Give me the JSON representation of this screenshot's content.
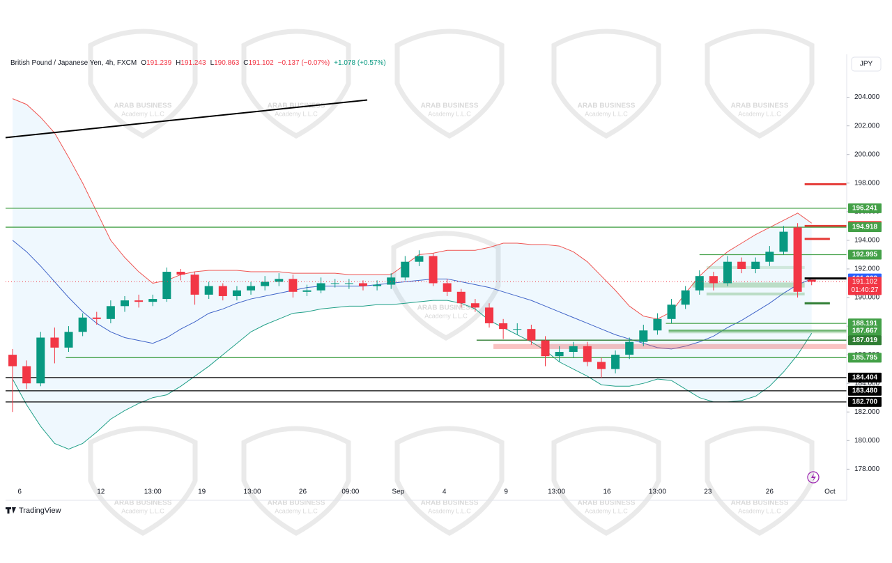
{
  "chart_data": {
    "type": "candlestick",
    "header": {
      "symbol": "British Pound / Japanese Yen, 4h, FXCM",
      "ohlc": [
        {
          "key": "O",
          "text": "191.239"
        },
        {
          "key": "H",
          "text": "191.243"
        },
        {
          "key": "L",
          "text": "190.863"
        },
        {
          "key": "C",
          "text": "191.102"
        }
      ],
      "change": "−0.137 (−0.07%)",
      "change2": "+1.078 (+0.57%)"
    },
    "currency": "JPY",
    "brand": "TradingView",
    "watermark": {
      "title": "ARAB BUSINESS",
      "subtitle": "Academy L.L.C"
    },
    "xlim": [
      -0.5,
      59.5
    ],
    "ylim": [
      176.8,
      207.0
    ],
    "xticks": [
      {
        "value": 0.5,
        "label": "6"
      },
      {
        "value": 6.3,
        "label": "12"
      },
      {
        "value": 10.0,
        "label": "13:00"
      },
      {
        "value": 13.5,
        "label": "19"
      },
      {
        "value": 17.1,
        "label": "13:00"
      },
      {
        "value": 20.7,
        "label": "26"
      },
      {
        "value": 24.1,
        "label": "09:00"
      },
      {
        "value": 27.5,
        "label": "Sep"
      },
      {
        "value": 30.8,
        "label": "4"
      },
      {
        "value": 35.2,
        "label": "9"
      },
      {
        "value": 38.8,
        "label": "13:00"
      },
      {
        "value": 42.4,
        "label": "16"
      },
      {
        "value": 46.0,
        "label": "13:00"
      },
      {
        "value": 49.6,
        "label": "23"
      },
      {
        "value": 54.0,
        "label": "26"
      },
      {
        "value": 58.3,
        "label": "Oct"
      }
    ],
    "yticks": [
      {
        "value": 178,
        "label": "178.000"
      },
      {
        "value": 180,
        "label": "180.000"
      },
      {
        "value": 182,
        "label": "182.000"
      },
      {
        "value": 184,
        "label": "184.000"
      },
      {
        "value": 186,
        "label": "186.000"
      },
      {
        "value": 188,
        "label": "188.000"
      },
      {
        "value": 190,
        "label": "190.000"
      },
      {
        "value": 192,
        "label": "192.000"
      },
      {
        "value": 194,
        "label": "194.000"
      },
      {
        "value": 196,
        "label": "196.000"
      },
      {
        "value": 198,
        "label": "198.000"
      },
      {
        "value": 200,
        "label": "200.000"
      },
      {
        "value": 202,
        "label": "202.000"
      },
      {
        "value": 204,
        "label": "204.000"
      }
    ],
    "up_color": "#089981",
    "down_color": "#f23645",
    "open": [
      186.0,
      185.2,
      184.0,
      187.2,
      186.5,
      187.6,
      188.6,
      188.5,
      189.4,
      189.8,
      189.7,
      189.9,
      191.8,
      191.6,
      190.2,
      190.8,
      190.1,
      190.5,
      190.8,
      191.1,
      191.3,
      190.4,
      190.5,
      191.0,
      191.0,
      191.0,
      190.8,
      190.9,
      191.4,
      192.5,
      192.9,
      191.0,
      190.4,
      189.6,
      189.3,
      188.2,
      187.8,
      187.8,
      187.0,
      185.9,
      186.2,
      186.6,
      185.5,
      185.0,
      186.0,
      186.9,
      187.7,
      188.5,
      189.5,
      190.5,
      191.5,
      191.0,
      192.5,
      192.0,
      192.5,
      193.2,
      194.9,
      191.239
    ],
    "high": [
      186.4,
      185.6,
      187.6,
      187.9,
      188.0,
      188.9,
      189.0,
      189.8,
      190.1,
      190.2,
      190.2,
      192.1,
      192.0,
      191.8,
      191.1,
      191.0,
      190.8,
      191.1,
      191.5,
      191.7,
      191.6,
      190.9,
      191.4,
      191.3,
      191.3,
      191.2,
      191.2,
      191.7,
      192.9,
      193.3,
      193.1,
      191.3,
      190.6,
      189.9,
      189.6,
      188.5,
      188.2,
      188.1,
      187.3,
      186.6,
      186.9,
      186.9,
      185.8,
      186.3,
      187.2,
      188.1,
      188.9,
      189.9,
      190.8,
      191.9,
      191.8,
      192.9,
      192.8,
      192.8,
      193.6,
      195.0,
      195.2,
      191.243
    ],
    "low": [
      182.0,
      183.6,
      183.8,
      185.4,
      186.2,
      187.3,
      188.1,
      188.2,
      189.0,
      189.3,
      189.4,
      189.7,
      191.2,
      189.5,
      189.9,
      189.8,
      189.8,
      190.2,
      190.5,
      190.8,
      190.0,
      190.1,
      190.3,
      190.7,
      190.6,
      190.5,
      190.5,
      190.6,
      191.2,
      192.2,
      190.8,
      190.1,
      189.3,
      189.0,
      187.9,
      187.1,
      187.4,
      186.7,
      185.2,
      185.5,
      185.8,
      185.2,
      184.4,
      184.7,
      185.7,
      186.6,
      187.4,
      188.2,
      189.2,
      190.2,
      190.5,
      190.8,
      191.7,
      191.7,
      192.2,
      193.0,
      190.0,
      190.863
    ],
    "close": [
      185.2,
      184.0,
      187.2,
      186.5,
      187.6,
      188.6,
      188.5,
      189.4,
      189.8,
      189.7,
      189.9,
      191.8,
      191.6,
      190.2,
      190.8,
      190.1,
      190.5,
      190.8,
      191.1,
      191.3,
      190.4,
      190.5,
      191.0,
      191.0,
      191.0,
      190.8,
      190.9,
      191.4,
      192.5,
      192.9,
      191.0,
      190.4,
      189.6,
      189.3,
      188.2,
      187.8,
      187.8,
      187.0,
      185.9,
      186.2,
      186.6,
      185.5,
      185.0,
      186.0,
      186.9,
      187.7,
      188.5,
      189.5,
      190.5,
      191.5,
      191.0,
      192.5,
      192.0,
      192.5,
      193.2,
      194.6,
      190.4,
      191.102
    ],
    "bands": {
      "fill": "rgba(33,150,243,0.07)",
      "upper": {
        "color": "#ef5350",
        "values": [
          203.9,
          203.5,
          202.6,
          201.5,
          199.8,
          198.0,
          196.0,
          194.0,
          192.8,
          191.8,
          191.0,
          191.2,
          191.6,
          191.8,
          191.9,
          191.9,
          191.9,
          191.8,
          191.8,
          191.8,
          191.7,
          191.7,
          191.7,
          191.7,
          191.6,
          191.6,
          191.6,
          191.6,
          192.3,
          193.0,
          193.1,
          193.3,
          193.3,
          193.3,
          193.5,
          193.8,
          193.8,
          193.7,
          193.7,
          193.6,
          193.2,
          192.5,
          191.5,
          190.5,
          189.4,
          188.7,
          188.5,
          189.0,
          190.3,
          191.5,
          192.4,
          193.2,
          193.8,
          194.4,
          194.9,
          195.4,
          195.9,
          195.2
        ]
      },
      "middle": {
        "color": "#3f63c8",
        "values": [
          194.0,
          193.2,
          192.2,
          191.1,
          190.0,
          189.0,
          188.2,
          187.6,
          187.2,
          187.0,
          186.8,
          187.2,
          187.8,
          188.3,
          188.9,
          189.2,
          189.6,
          189.9,
          190.1,
          190.3,
          190.5,
          190.7,
          190.8,
          190.8,
          190.8,
          190.8,
          190.9,
          191.0,
          191.1,
          191.2,
          191.3,
          191.3,
          191.1,
          190.9,
          190.7,
          190.4,
          190.1,
          189.8,
          189.4,
          189.0,
          188.6,
          188.2,
          187.8,
          187.4,
          187.1,
          186.8,
          186.5,
          186.4,
          186.6,
          186.9,
          187.3,
          187.9,
          188.4,
          189.0,
          189.6,
          190.3,
          190.9,
          191.3
        ]
      },
      "lower": {
        "color": "#1f9f87",
        "values": [
          184.3,
          182.5,
          181.0,
          179.8,
          179.4,
          179.8,
          180.6,
          181.5,
          182.1,
          182.6,
          183.0,
          183.2,
          183.8,
          184.5,
          185.2,
          186.0,
          186.8,
          187.6,
          188.1,
          188.5,
          188.9,
          189.0,
          189.2,
          189.3,
          189.4,
          189.4,
          189.5,
          189.5,
          189.6,
          189.7,
          189.8,
          189.8,
          189.6,
          189.2,
          188.4,
          187.9,
          187.4,
          186.9,
          186.3,
          185.5,
          185.0,
          184.5,
          183.9,
          183.8,
          183.8,
          184.0,
          184.3,
          184.2,
          183.6,
          183.0,
          182.7,
          182.7,
          182.8,
          183.1,
          183.8,
          184.8,
          186.0,
          187.5
        ]
      }
    },
    "trendline": {
      "x": [
        -0.5,
        25.3
      ],
      "values": [
        201.18,
        203.81
      ],
      "color": "#000000"
    },
    "zones": [
      {
        "x": [
          49.5,
          56.5
        ],
        "values": [
          192.2,
          192.0
        ],
        "color": "rgba(67,160,71,0.18)"
      },
      {
        "x": [
          48.5,
          56.5
        ],
        "values": [
          191.05,
          190.7
        ],
        "color": "rgba(67,160,71,0.3)"
      },
      {
        "x": [
          49.5,
          56.5
        ],
        "values": [
          190.35,
          190.15
        ],
        "color": "rgba(67,160,71,0.3)"
      },
      {
        "x": [
          46.8,
          59.5
        ],
        "values": [
          187.8,
          187.5
        ],
        "color": "rgba(67,160,71,0.3)"
      },
      {
        "x": [
          34.3,
          59.5
        ],
        "values": [
          186.75,
          186.4
        ],
        "color": "rgba(239,83,80,0.35)"
      }
    ],
    "levels": [
      {
        "value": 196.241,
        "color": "#43a047",
        "x": [
          -0.5,
          59.5
        ],
        "boxed": true
      },
      {
        "value": 194.998,
        "color": "#e53935",
        "x": [
          56.5,
          59.5
        ],
        "boxed": true,
        "thick": true
      },
      {
        "value": 194.918,
        "color": "#43a047",
        "x": [
          -0.5,
          59.5
        ],
        "boxed": true
      },
      {
        "value": 192.995,
        "color": "#43a047",
        "x": [
          49.0,
          59.5
        ],
        "boxed": true
      },
      {
        "value": 191.333,
        "color": "#000000",
        "box_color": "#2962ff",
        "x": [
          56.5,
          59.5
        ],
        "boxed": true,
        "thick": true
      },
      {
        "value": 188.191,
        "color": "#43a047",
        "x": [
          46.6,
          59.5
        ],
        "boxed": true
      },
      {
        "value": 187.667,
        "color": "#43a047",
        "x": [
          46.8,
          59.5
        ],
        "boxed": true
      },
      {
        "value": 187.019,
        "color": "#2e7d32",
        "x": [
          33.1,
          59.5
        ],
        "boxed": true
      },
      {
        "value": 185.795,
        "color": "#43a047",
        "x": [
          3.8,
          59.5
        ],
        "boxed": true
      },
      {
        "value": 184.404,
        "color": "#000000",
        "x": [
          -0.5,
          59.5
        ],
        "boxed": true
      },
      {
        "value": 183.48,
        "label": "183.480",
        "color": "#000000",
        "x": [
          -0.5,
          59.5
        ],
        "boxed": true
      },
      {
        "value": 182.7,
        "label": "182.700",
        "color": "#000000",
        "x": [
          -0.5,
          59.5
        ],
        "boxed": true
      },
      {
        "value": 197.92,
        "color": "#e53935",
        "x": [
          56.5,
          59.5
        ],
        "boxed": false,
        "thick": true
      },
      {
        "value": 194.1,
        "color": "#e53935",
        "x": [
          56.5,
          58.3
        ],
        "boxed": false,
        "thick": true
      },
      {
        "value": 189.6,
        "color": "#2e7d32",
        "x": [
          56.5,
          58.3
        ],
        "boxed": false,
        "thick": true
      }
    ],
    "last_price": {
      "value": 191.102,
      "countdown": "01:40:27",
      "color": "#f23645"
    }
  }
}
